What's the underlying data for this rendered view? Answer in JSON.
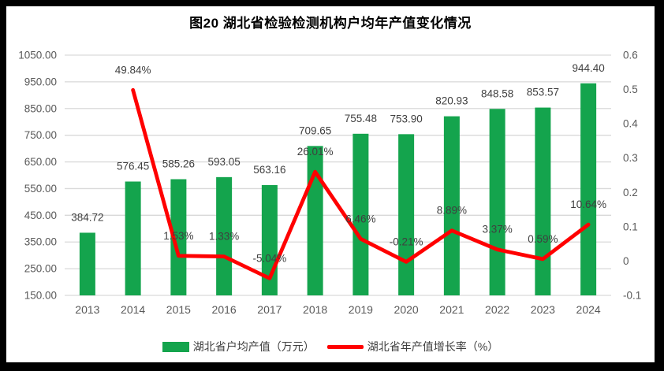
{
  "chart_data": {
    "type": "combo-bar-line",
    "title": "图20 湖北省检验检测机构户均年产值变化情况",
    "categories": [
      "2013",
      "2014",
      "2015",
      "2016",
      "2017",
      "2018",
      "2019",
      "2020",
      "2021",
      "2022",
      "2023",
      "2024"
    ],
    "series": [
      {
        "name": "湖北省户均产值（万元）",
        "type": "bar",
        "axis": "left",
        "color": "#14A44D",
        "values": [
          384.72,
          576.45,
          585.26,
          593.05,
          563.16,
          709.65,
          755.48,
          753.9,
          820.93,
          848.58,
          853.57,
          944.4
        ],
        "labels": [
          "384.72",
          "576.45",
          "585.26",
          "593.05",
          "563.16",
          "709.65",
          "755.48",
          "753.90",
          "820.93",
          "848.58",
          "853.57",
          "944.40"
        ]
      },
      {
        "name": "湖北省年产值增长率（%）",
        "type": "line",
        "axis": "right",
        "color": "#FF0000",
        "values": [
          null,
          0.4984,
          0.0153,
          0.0133,
          -0.0504,
          0.2601,
          0.0646,
          -0.0021,
          0.0889,
          0.0337,
          0.0059,
          0.1064
        ],
        "labels": [
          null,
          "49.84%",
          "1.53%",
          "1.33%",
          "-5.04%",
          "26.01%",
          "6.46%",
          "-0.21%",
          "8.89%",
          "3.37%",
          "0.59%",
          "10.64%"
        ]
      }
    ],
    "left_axis": {
      "min": 150,
      "max": 1050,
      "step": 100,
      "tick_values": [
        1050,
        950,
        850,
        750,
        650,
        550,
        450,
        350,
        250,
        150
      ],
      "tick_labels": [
        "1050.00",
        "950.00",
        "850.00",
        "750.00",
        "650.00",
        "550.00",
        "450.00",
        "350.00",
        "250.00",
        "150.00"
      ]
    },
    "right_axis": {
      "min": -0.1,
      "max": 0.6,
      "step": 0.1,
      "tick_values": [
        0.6,
        0.5,
        0.4,
        0.3,
        0.2,
        0.1,
        0,
        -0.1
      ],
      "tick_labels": [
        "0.6",
        "0.5",
        "0.4",
        "0.3",
        "0.2",
        "0.1",
        "0",
        "-0.1"
      ]
    },
    "grid": true,
    "legend_position": "bottom",
    "colors": {
      "grid": "#D9D9D9",
      "tick_text": "#595959",
      "label_text": "#3F3F3F",
      "frame": "#000000",
      "background": "#FFFFFF"
    }
  },
  "legend": {
    "items": [
      {
        "label": "湖北省户均产值（万元）",
        "swatch": "bar",
        "color": "#14A44D"
      },
      {
        "label": "湖北省年产值增长率（%）",
        "swatch": "line",
        "color": "#FF0000"
      }
    ]
  }
}
